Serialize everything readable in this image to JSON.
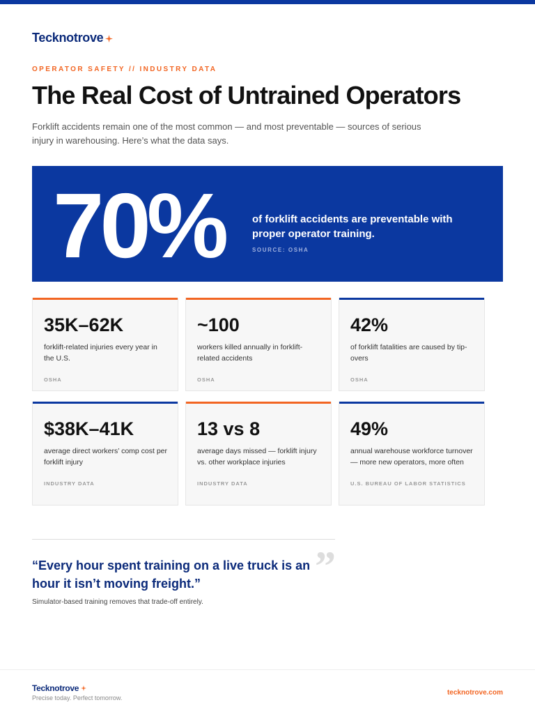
{
  "header": {
    "brand": "Tecknotrove",
    "eyebrow": "OPERATOR SAFETY // INDUSTRY DATA",
    "title": "The Real Cost of Untrained Operators",
    "subtitle": "Forklift accidents remain one of the most common — and most preventable — sources of serious injury in warehousing. Here’s what the data says."
  },
  "hero": {
    "stat": "70%",
    "text": "of forklift accidents are preventable with proper operator training.",
    "source": "SOURCE: OSHA"
  },
  "cards": [
    {
      "stat": "35K–62K",
      "text": "forklift-related injuries every year in the U.S.",
      "source": "OSHA",
      "accent": "#f26522"
    },
    {
      "stat": "~100",
      "text": "workers killed annually in forklift-related accidents",
      "source": "OSHA",
      "accent": "#f26522"
    },
    {
      "stat": "42%",
      "text": "of forklift fatalities are caused by tip-overs",
      "source": "OSHA",
      "accent": "#0b38a0"
    },
    {
      "stat": "$38K–41K",
      "text": "average direct workers’ comp cost per forklift injury",
      "source": "INDUSTRY DATA",
      "accent": "#0b38a0"
    },
    {
      "stat": "13 vs 8",
      "text": "average days missed — forklift injury vs. other workplace injuries",
      "source": "INDUSTRY DATA",
      "accent": "#f26522"
    },
    {
      "stat": "49%",
      "text": "annual warehouse workforce turnover — more new operators, more often",
      "source": "U.S. BUREAU OF LABOR STATISTICS",
      "accent": "#0b38a0"
    }
  ],
  "quote": {
    "text": "“Every hour spent training on a live truck is an hour it isn’t moving freight.”",
    "caption": "Simulator-based training removes that trade-off entirely."
  },
  "footer": {
    "brand": "Tecknotrove",
    "tagline": "Precise today. Perfect tomorrow.",
    "url": "tecknotrove.com"
  }
}
